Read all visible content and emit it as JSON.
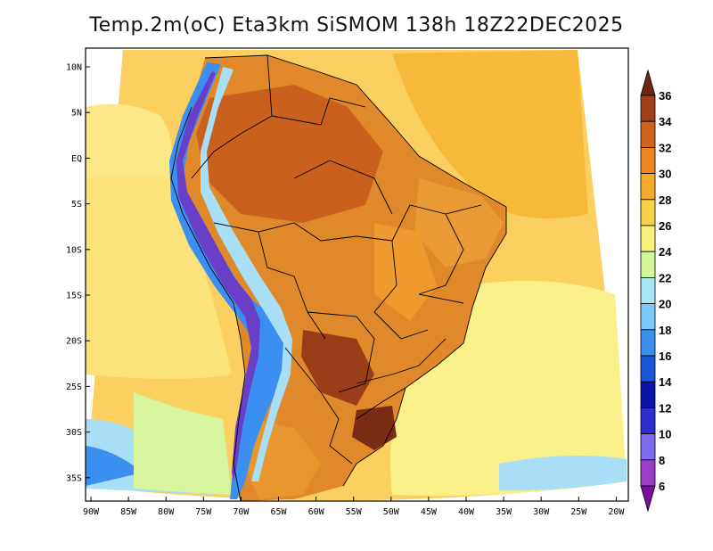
{
  "map": {
    "title": "Temp.2m(oC) Eta3km SiSMOM 138h 18Z22DEC2025",
    "lat_ticks": [
      "10N",
      "5N",
      "EQ",
      "5S",
      "10S",
      "15S",
      "20S",
      "25S",
      "30S",
      "35S"
    ],
    "lon_ticks": [
      "90W",
      "85W",
      "80W",
      "75W",
      "70W",
      "65W",
      "60W",
      "55W",
      "50W",
      "45W",
      "40W",
      "35W",
      "30W",
      "25W",
      "20W"
    ],
    "colorbar": {
      "labels": [
        "6",
        "8",
        "10",
        "12",
        "14",
        "16",
        "18",
        "20",
        "22",
        "24",
        "26",
        "28",
        "30",
        "32",
        "34",
        "36"
      ],
      "colors": [
        "#7a0d9b",
        "#9c3fc8",
        "#7d6cf0",
        "#2f2fcf",
        "#0a14a8",
        "#1a56d6",
        "#3a8ff0",
        "#7cc8f8",
        "#a8e6f4",
        "#d2f79a",
        "#faf07e",
        "#f7d247",
        "#f5a92a",
        "#ee8420",
        "#d0621a",
        "#a0401a",
        "#6e2812"
      ]
    }
  }
}
